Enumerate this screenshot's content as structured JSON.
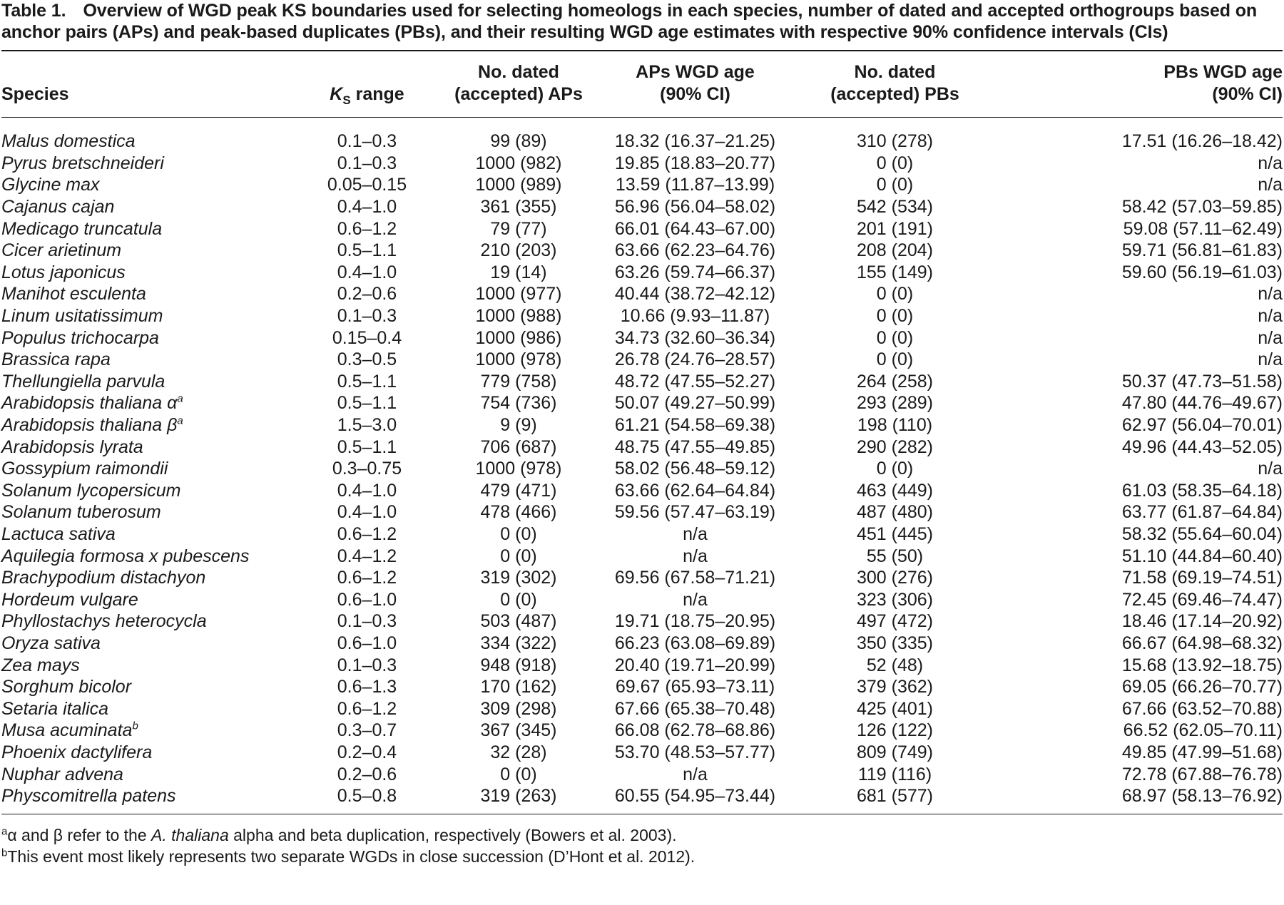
{
  "caption": {
    "label": "Table 1.",
    "text": "Overview of WGD peak KS boundaries used for selecting homeologs in each species, number of dated and accepted orthogroups based on anchor pairs (APs) and peak-based duplicates (PBs), and their resulting WGD age estimates with respective 90% confidence intervals (CIs)"
  },
  "headers": {
    "species": "Species",
    "ks_symbol": "K",
    "ks_sub": "S",
    "ks_rest": " range",
    "aps_line1": "No. dated",
    "aps_line2": "(accepted) APs",
    "aps_age_line1": "APs WGD age",
    "aps_age_line2": "(90% CI)",
    "pbs_line1": "No. dated",
    "pbs_line2": "(accepted) PBs",
    "pbs_age_line1": "PBs WGD age",
    "pbs_age_line2": "(90% CI)"
  },
  "rows": [
    {
      "species": "Malus domestica",
      "sup": "",
      "ks": "0.1–0.3",
      "aps": "99 (89)",
      "aps_age": "18.32 (16.37–21.25)",
      "pbs": "310 (278)",
      "pbs_age": "17.51 (16.26–18.42)"
    },
    {
      "species": "Pyrus bretschneideri",
      "sup": "",
      "ks": "0.1–0.3",
      "aps": "1000 (982)",
      "aps_age": "19.85 (18.83–20.77)",
      "pbs": "0 (0)",
      "pbs_age": "n/a"
    },
    {
      "species": "Glycine max",
      "sup": "",
      "ks": "0.05–0.15",
      "aps": "1000 (989)",
      "aps_age": "13.59 (11.87–13.99)",
      "pbs": "0 (0)",
      "pbs_age": "n/a"
    },
    {
      "species": "Cajanus cajan",
      "sup": "",
      "ks": "0.4–1.0",
      "aps": "361 (355)",
      "aps_age": "56.96 (56.04–58.02)",
      "pbs": "542 (534)",
      "pbs_age": "58.42 (57.03–59.85)"
    },
    {
      "species": "Medicago truncatula",
      "sup": "",
      "ks": "0.6–1.2",
      "aps": "79 (77)",
      "aps_age": "66.01 (64.43–67.00)",
      "pbs": "201 (191)",
      "pbs_age": "59.08 (57.11–62.49)"
    },
    {
      "species": "Cicer arietinum",
      "sup": "",
      "ks": "0.5–1.1",
      "aps": "210 (203)",
      "aps_age": "63.66 (62.23–64.76)",
      "pbs": "208 (204)",
      "pbs_age": "59.71 (56.81–61.83)"
    },
    {
      "species": "Lotus japonicus",
      "sup": "",
      "ks": "0.4–1.0",
      "aps": "19 (14)",
      "aps_age": "63.26 (59.74–66.37)",
      "pbs": "155 (149)",
      "pbs_age": "59.60 (56.19–61.03)"
    },
    {
      "species": "Manihot esculenta",
      "sup": "",
      "ks": "0.2–0.6",
      "aps": "1000 (977)",
      "aps_age": "40.44 (38.72–42.12)",
      "pbs": "0 (0)",
      "pbs_age": "n/a"
    },
    {
      "species": "Linum usitatissimum",
      "sup": "",
      "ks": "0.1–0.3",
      "aps": "1000 (988)",
      "aps_age": "10.66 (9.93–11.87)",
      "pbs": "0 (0)",
      "pbs_age": "n/a"
    },
    {
      "species": "Populus trichocarpa",
      "sup": "",
      "ks": "0.15–0.4",
      "aps": "1000 (986)",
      "aps_age": "34.73 (32.60–36.34)",
      "pbs": "0 (0)",
      "pbs_age": "n/a"
    },
    {
      "species": "Brassica rapa",
      "sup": "",
      "ks": "0.3–0.5",
      "aps": "1000 (978)",
      "aps_age": "26.78 (24.76–28.57)",
      "pbs": "0 (0)",
      "pbs_age": "n/a"
    },
    {
      "species": "Thellungiella parvula",
      "sup": "",
      "ks": "0.5–1.1",
      "aps": "779 (758)",
      "aps_age": "48.72 (47.55–52.27)",
      "pbs": "264 (258)",
      "pbs_age": "50.37 (47.73–51.58)"
    },
    {
      "species": "Arabidopsis thaliana α",
      "sup": "a",
      "ks": "0.5–1.1",
      "aps": "754 (736)",
      "aps_age": "50.07 (49.27–50.99)",
      "pbs": "293 (289)",
      "pbs_age": "47.80 (44.76–49.67)"
    },
    {
      "species": "Arabidopsis thaliana β",
      "sup": "a",
      "ks": "1.5–3.0",
      "aps": "9 (9)",
      "aps_age": "61.21 (54.58–69.38)",
      "pbs": "198 (110)",
      "pbs_age": "62.97 (56.04–70.01)"
    },
    {
      "species": "Arabidopsis lyrata",
      "sup": "",
      "ks": "0.5–1.1",
      "aps": "706 (687)",
      "aps_age": "48.75 (47.55–49.85)",
      "pbs": "290 (282)",
      "pbs_age": "49.96 (44.43–52.05)"
    },
    {
      "species": "Gossypium raimondii",
      "sup": "",
      "ks": "0.3–0.75",
      "aps": "1000 (978)",
      "aps_age": "58.02 (56.48–59.12)",
      "pbs": "0 (0)",
      "pbs_age": "n/a"
    },
    {
      "species": "Solanum lycopersicum",
      "sup": "",
      "ks": "0.4–1.0",
      "aps": "479 (471)",
      "aps_age": "63.66 (62.64–64.84)",
      "pbs": "463 (449)",
      "pbs_age": "61.03 (58.35–64.18)"
    },
    {
      "species": "Solanum tuberosum",
      "sup": "",
      "ks": "0.4–1.0",
      "aps": "478 (466)",
      "aps_age": "59.56 (57.47–63.19)",
      "pbs": "487 (480)",
      "pbs_age": "63.77 (61.87–64.84)"
    },
    {
      "species": "Lactuca sativa",
      "sup": "",
      "ks": "0.6–1.2",
      "aps": "0 (0)",
      "aps_age": "n/a",
      "pbs": "451 (445)",
      "pbs_age": "58.32 (55.64–60.04)"
    },
    {
      "species": "Aquilegia formosa x pubescens",
      "sup": "",
      "ks": "0.4–1.2",
      "aps": "0 (0)",
      "aps_age": "n/a",
      "pbs": "55 (50)",
      "pbs_age": "51.10 (44.84–60.40)"
    },
    {
      "species": "Brachypodium distachyon",
      "sup": "",
      "ks": "0.6–1.2",
      "aps": "319 (302)",
      "aps_age": "69.56 (67.58–71.21)",
      "pbs": "300 (276)",
      "pbs_age": "71.58 (69.19–74.51)"
    },
    {
      "species": "Hordeum vulgare",
      "sup": "",
      "ks": "0.6–1.0",
      "aps": "0 (0)",
      "aps_age": "n/a",
      "pbs": "323 (306)",
      "pbs_age": "72.45 (69.46–74.47)"
    },
    {
      "species": "Phyllostachys heterocycla",
      "sup": "",
      "ks": "0.1–0.3",
      "aps": "503 (487)",
      "aps_age": "19.71 (18.75–20.95)",
      "pbs": "497 (472)",
      "pbs_age": "18.46 (17.14–20.92)"
    },
    {
      "species": "Oryza sativa",
      "sup": "",
      "ks": "0.6–1.0",
      "aps": "334 (322)",
      "aps_age": "66.23 (63.08–69.89)",
      "pbs": "350 (335)",
      "pbs_age": "66.67 (64.98–68.32)"
    },
    {
      "species": "Zea mays",
      "sup": "",
      "ks": "0.1–0.3",
      "aps": "948 (918)",
      "aps_age": "20.40 (19.71–20.99)",
      "pbs": "52 (48)",
      "pbs_age": "15.68 (13.92–18.75)"
    },
    {
      "species": "Sorghum bicolor",
      "sup": "",
      "ks": "0.6–1.3",
      "aps": "170 (162)",
      "aps_age": "69.67 (65.93–73.11)",
      "pbs": "379 (362)",
      "pbs_age": "69.05 (66.26–70.77)"
    },
    {
      "species": "Setaria italica",
      "sup": "",
      "ks": "0.6–1.2",
      "aps": "309 (298)",
      "aps_age": "67.66 (65.38–70.48)",
      "pbs": "425 (401)",
      "pbs_age": "67.66 (63.52–70.88)"
    },
    {
      "species": "Musa acuminata",
      "sup": "b",
      "ks": "0.3–0.7",
      "aps": "367 (345)",
      "aps_age": "66.08 (62.78–68.86)",
      "pbs": "126 (122)",
      "pbs_age": "66.52 (62.05–70.11)"
    },
    {
      "species": "Phoenix dactylifera",
      "sup": "",
      "ks": "0.2–0.4",
      "aps": "32 (28)",
      "aps_age": "53.70 (48.53–57.77)",
      "pbs": "809 (749)",
      "pbs_age": "49.85 (47.99–51.68)"
    },
    {
      "species": "Nuphar advena",
      "sup": "",
      "ks": "0.2–0.6",
      "aps": "0 (0)",
      "aps_age": "n/a",
      "pbs": "119 (116)",
      "pbs_age": "72.78 (67.88–76.78)"
    },
    {
      "species": "Physcomitrella patens",
      "sup": "",
      "ks": "0.5–0.8",
      "aps": "319 (263)",
      "aps_age": "60.55 (54.95–73.44)",
      "pbs": "681 (577)",
      "pbs_age": "68.97 (58.13–76.92)"
    }
  ],
  "footnotes": {
    "a_mark": "a",
    "a_pre": "α and β refer to the ",
    "a_italic": "A. thaliana",
    "a_post": " alpha and beta duplication, respectively (Bowers et al. 2003).",
    "b_mark": "b",
    "b_text": "This event most likely represents two separate WGDs in close succession (D’Hont et al. 2012)."
  }
}
